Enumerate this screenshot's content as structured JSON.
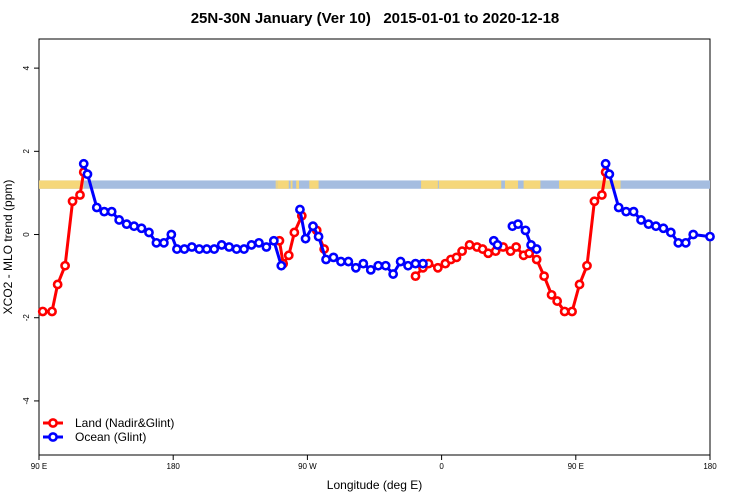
{
  "chart_data": {
    "type": "line",
    "title": "25N-30N January (Ver 10)   2015-01-01 to 2020-12-18",
    "xlabel": "Longitude (deg E)",
    "ylabel": "XCO2 - MLO trend (ppm)",
    "xlim": [
      0,
      360
    ],
    "ylim": [
      -5.3,
      4.7
    ],
    "x_ticks": [
      {
        "value": 0,
        "label": "90 E"
      },
      {
        "value": 72,
        "label": "180"
      },
      {
        "value": 144,
        "label": "90 W"
      },
      {
        "value": 216,
        "label": "0"
      },
      {
        "value": 288,
        "label": "90 E"
      },
      {
        "value": 360,
        "label": "180"
      }
    ],
    "y_ticks": [
      -4,
      -2,
      0,
      2,
      4
    ],
    "land_mask_band": {
      "y_range": [
        1.1,
        1.3
      ],
      "ocean_color": "#a5bde0",
      "land_color": "#f5d77a",
      "land_segments": [
        [
          0,
          24
        ],
        [
          127,
          127.6
        ],
        [
          127.8,
          134
        ],
        [
          135,
          136
        ],
        [
          138,
          139.5
        ],
        [
          145,
          150
        ],
        [
          205,
          214
        ],
        [
          214.5,
          248
        ],
        [
          250,
          257
        ],
        [
          260,
          269
        ],
        [
          279,
          312
        ]
      ]
    },
    "legend": {
      "position": "bottom-left",
      "entries": [
        {
          "label": "Land (Nadir&Glint)",
          "color": "#ff0000"
        },
        {
          "label": "Ocean (Glint)",
          "color": "#0000ff"
        }
      ]
    },
    "series": [
      {
        "name": "Land (Nadir&Glint)",
        "color": "#ff0000",
        "segments": [
          [
            [
              2,
              -1.85
            ],
            [
              7,
              -1.85
            ],
            [
              10,
              -1.2
            ],
            [
              14,
              -0.75
            ],
            [
              18,
              0.8
            ],
            [
              22,
              0.95
            ],
            [
              24,
              1.5
            ]
          ],
          [
            [
              129,
              -0.15
            ],
            [
              131,
              -0.7
            ],
            [
              134,
              -0.5
            ],
            [
              137,
              0.05
            ],
            [
              141,
              0.45
            ]
          ],
          [
            [
              149,
              0.1
            ],
            [
              153,
              -0.35
            ]
          ],
          [
            [
              202,
              -1.0
            ],
            [
              206,
              -0.8
            ],
            [
              209,
              -0.7
            ],
            [
              214,
              -0.8
            ],
            [
              218,
              -0.7
            ],
            [
              221,
              -0.6
            ],
            [
              224,
              -0.55
            ],
            [
              227,
              -0.4
            ],
            [
              231,
              -0.25
            ],
            [
              235,
              -0.3
            ],
            [
              238,
              -0.35
            ],
            [
              241,
              -0.45
            ],
            [
              245,
              -0.4
            ],
            [
              249,
              -0.3
            ],
            [
              253,
              -0.4
            ],
            [
              256,
              -0.3
            ],
            [
              260,
              -0.5
            ],
            [
              263,
              -0.45
            ],
            [
              267,
              -0.6
            ],
            [
              271,
              -1.0
            ],
            [
              275,
              -1.45
            ],
            [
              278,
              -1.6
            ],
            [
              282,
              -1.85
            ],
            [
              286,
              -1.85
            ],
            [
              290,
              -1.2
            ],
            [
              294,
              -0.75
            ],
            [
              298,
              0.8
            ],
            [
              302,
              0.95
            ],
            [
              304,
              1.5
            ]
          ]
        ]
      },
      {
        "name": "Ocean (Glint)",
        "color": "#0000ff",
        "segments": [
          [
            [
              24,
              1.7
            ],
            [
              26,
              1.45
            ],
            [
              31,
              0.65
            ],
            [
              35,
              0.55
            ],
            [
              39,
              0.55
            ],
            [
              43,
              0.35
            ],
            [
              47,
              0.25
            ],
            [
              51,
              0.2
            ],
            [
              55,
              0.15
            ],
            [
              59,
              0.05
            ],
            [
              63,
              -0.2
            ],
            [
              67,
              -0.2
            ],
            [
              71,
              0.0
            ],
            [
              74,
              -0.35
            ],
            [
              78,
              -0.35
            ],
            [
              82,
              -0.3
            ],
            [
              86,
              -0.35
            ],
            [
              90,
              -0.35
            ],
            [
              94,
              -0.35
            ],
            [
              98,
              -0.25
            ],
            [
              102,
              -0.3
            ],
            [
              106,
              -0.35
            ],
            [
              110,
              -0.35
            ],
            [
              114,
              -0.25
            ],
            [
              118,
              -0.2
            ],
            [
              122,
              -0.3
            ],
            [
              126,
              -0.15
            ],
            [
              130,
              -0.75
            ]
          ],
          [
            [
              140,
              0.6
            ],
            [
              143,
              -0.1
            ],
            [
              147,
              0.2
            ],
            [
              150,
              -0.05
            ],
            [
              154,
              -0.6
            ],
            [
              158,
              -0.55
            ],
            [
              162,
              -0.65
            ],
            [
              166,
              -0.65
            ],
            [
              170,
              -0.8
            ],
            [
              174,
              -0.7
            ],
            [
              178,
              -0.85
            ],
            [
              182,
              -0.75
            ],
            [
              186,
              -0.75
            ],
            [
              190,
              -0.95
            ],
            [
              194,
              -0.65
            ],
            [
              198,
              -0.75
            ],
            [
              202,
              -0.7
            ],
            [
              206,
              -0.7
            ]
          ],
          [
            [
              244,
              -0.15
            ],
            [
              246,
              -0.25
            ]
          ],
          [
            [
              254,
              0.2
            ],
            [
              257,
              0.25
            ],
            [
              261,
              0.1
            ],
            [
              264,
              -0.25
            ],
            [
              267,
              -0.35
            ]
          ],
          [
            [
              304,
              1.7
            ],
            [
              306,
              1.45
            ],
            [
              311,
              0.65
            ],
            [
              315,
              0.55
            ],
            [
              319,
              0.55
            ],
            [
              323,
              0.35
            ],
            [
              327,
              0.25
            ],
            [
              331,
              0.2
            ],
            [
              335,
              0.15
            ],
            [
              339,
              0.05
            ],
            [
              343,
              -0.2
            ],
            [
              347,
              -0.2
            ],
            [
              351,
              0.0
            ],
            [
              360,
              -0.05
            ]
          ]
        ]
      }
    ]
  }
}
